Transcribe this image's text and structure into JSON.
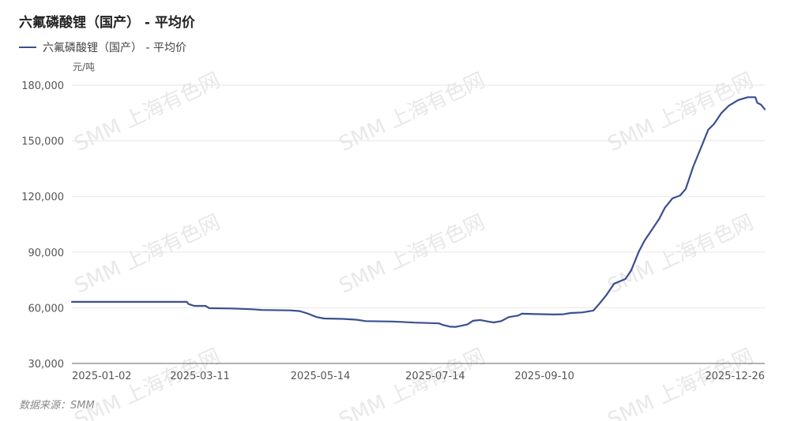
{
  "title": "六氟磷酸锂（国产） - 平均价",
  "legend": {
    "label": "六氟磷酸锂（国产） - 平均价",
    "color": "#3a4f8f"
  },
  "source": "数据来源：SMM",
  "watermark": "SMM 上海有色网",
  "chart_data": {
    "type": "line",
    "title": "六氟磷酸锂（国产） - 平均价",
    "ylabel": "元/吨",
    "ylim": [
      30000,
      180000
    ],
    "yticks": [
      30000,
      60000,
      90000,
      120000,
      150000,
      180000
    ],
    "ytick_labels": [
      "30,000",
      "60,000",
      "90,000",
      "120,000",
      "150,000",
      "180,000"
    ],
    "xtick_labels": [
      "2025-01-02",
      "2025-03-11",
      "2025-05-14",
      "2025-07-14",
      "2025-09-10",
      "2025-12-26"
    ],
    "xtick_dates": [
      "2025-01-02",
      "2025-03-11",
      "2025-05-14",
      "2025-07-14",
      "2025-09-10",
      "2025-12-26"
    ],
    "xlim": [
      "2025-01-02",
      "2026-01-05"
    ],
    "grid": "horizontal",
    "series": [
      {
        "name": "六氟磷酸锂（国产） - 平均价",
        "color": "#3a4f8f",
        "points": [
          [
            "2025-01-02",
            63200
          ],
          [
            "2025-02-20",
            63200
          ],
          [
            "2025-03-04",
            63200
          ],
          [
            "2025-03-05",
            62000
          ],
          [
            "2025-03-08",
            61000
          ],
          [
            "2025-03-14",
            61000
          ],
          [
            "2025-03-16",
            59800
          ],
          [
            "2025-03-28",
            59600
          ],
          [
            "2025-04-08",
            59200
          ],
          [
            "2025-04-13",
            58800
          ],
          [
            "2025-04-28",
            58600
          ],
          [
            "2025-05-03",
            58200
          ],
          [
            "2025-05-07",
            57000
          ],
          [
            "2025-05-12",
            55000
          ],
          [
            "2025-05-16",
            54200
          ],
          [
            "2025-05-26",
            54000
          ],
          [
            "2025-06-02",
            53600
          ],
          [
            "2025-06-07",
            52800
          ],
          [
            "2025-06-21",
            52600
          ],
          [
            "2025-06-26",
            52400
          ],
          [
            "2025-07-03",
            52000
          ],
          [
            "2025-07-10",
            51800
          ],
          [
            "2025-07-16",
            51600
          ],
          [
            "2025-07-18",
            50800
          ],
          [
            "2025-07-22",
            49800
          ],
          [
            "2025-07-25",
            49700
          ],
          [
            "2025-07-31",
            51000
          ],
          [
            "2025-08-03",
            53000
          ],
          [
            "2025-08-07",
            53400
          ],
          [
            "2025-08-11",
            52600
          ],
          [
            "2025-08-14",
            52100
          ],
          [
            "2025-08-18",
            52800
          ],
          [
            "2025-08-22",
            55000
          ],
          [
            "2025-08-27",
            55800
          ],
          [
            "2025-08-29",
            56800
          ],
          [
            "2025-09-05",
            56600
          ],
          [
            "2025-09-15",
            56400
          ],
          [
            "2025-09-20",
            56500
          ],
          [
            "2025-09-24",
            57200
          ],
          [
            "2025-09-30",
            57500
          ],
          [
            "2025-10-06",
            58500
          ],
          [
            "2025-10-09",
            62000
          ],
          [
            "2025-10-13",
            67000
          ],
          [
            "2025-10-17",
            73000
          ],
          [
            "2025-10-23",
            75500
          ],
          [
            "2025-10-26",
            80000
          ],
          [
            "2025-10-30",
            90000
          ],
          [
            "2025-11-02",
            96000
          ],
          [
            "2025-11-06",
            102000
          ],
          [
            "2025-11-10",
            108000
          ],
          [
            "2025-11-13",
            114000
          ],
          [
            "2025-11-17",
            119000
          ],
          [
            "2025-11-21",
            120500
          ],
          [
            "2025-11-24",
            124000
          ],
          [
            "2025-11-28",
            136000
          ],
          [
            "2025-12-02",
            146000
          ],
          [
            "2025-12-06",
            156000
          ],
          [
            "2025-12-09",
            159000
          ],
          [
            "2025-12-13",
            165000
          ],
          [
            "2025-12-17",
            169000
          ],
          [
            "2025-12-22",
            172000
          ],
          [
            "2025-12-27",
            173500
          ],
          [
            "2025-12-31",
            173500
          ],
          [
            "2026-01-01",
            170500
          ],
          [
            "2026-01-03",
            169500
          ],
          [
            "2026-01-05",
            167000
          ]
        ]
      }
    ]
  }
}
